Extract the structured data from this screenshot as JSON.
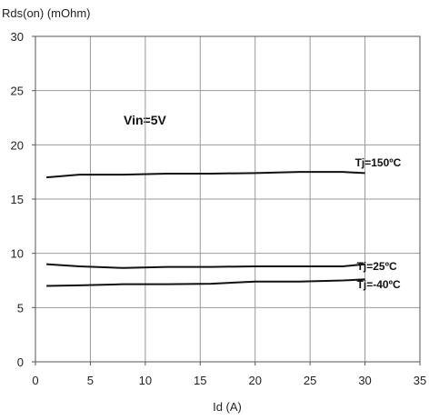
{
  "chart_data": {
    "type": "line",
    "title": "",
    "xlabel": "Id (A)",
    "ylabel": "Rds(on) (mOhm)",
    "xlim": [
      0,
      35
    ],
    "ylim": [
      0,
      30
    ],
    "xticks": [
      "0",
      "5",
      "10",
      "15",
      "20",
      "25",
      "30",
      "35"
    ],
    "yticks": [
      "0",
      "5",
      "10",
      "15",
      "20",
      "25",
      "30"
    ],
    "grid": true,
    "legend": "none",
    "annotations": [
      "Vin=5V"
    ],
    "series": [
      {
        "name": "Tj=150ºC",
        "x": [
          1,
          4,
          8,
          12,
          16,
          20,
          24,
          28,
          30
        ],
        "y": [
          17.0,
          17.25,
          17.25,
          17.35,
          17.35,
          17.4,
          17.5,
          17.5,
          17.4
        ]
      },
      {
        "name": "Tj=25ºC",
        "x": [
          1,
          4,
          8,
          12,
          16,
          20,
          24,
          28,
          30
        ],
        "y": [
          9.0,
          8.8,
          8.65,
          8.75,
          8.75,
          8.8,
          8.8,
          8.8,
          9.0
        ]
      },
      {
        "name": "Tj=-40ºC",
        "x": [
          1,
          4,
          8,
          12,
          16,
          20,
          24,
          28,
          30
        ],
        "y": [
          7.0,
          7.05,
          7.15,
          7.15,
          7.2,
          7.4,
          7.4,
          7.5,
          7.6
        ]
      }
    ]
  },
  "colors": {
    "line": "#111111",
    "grid": "#999999",
    "axis": "#555555"
  }
}
